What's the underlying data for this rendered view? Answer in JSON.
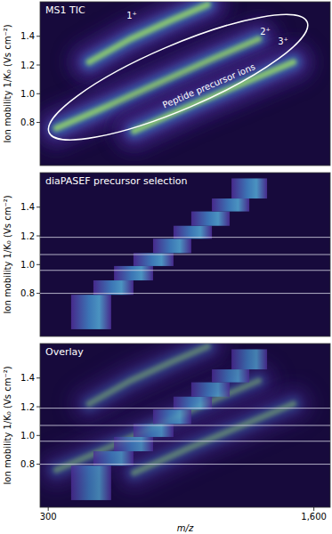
{
  "chart_data": [
    {
      "type": "heatmap",
      "title": "MS1 TIC",
      "ylabel": "Ion mobility 1/K₀ (Vs cm⁻²)",
      "xlim": [
        260,
        1680
      ],
      "ylim": [
        0.5,
        1.64
      ],
      "yticks": [
        0.8,
        {
          "value": 1,
          "label": "1.0"
        },
        1.2,
        1.4
      ],
      "tick_labels": "y",
      "bands": [
        {
          "label": "1⁺",
          "label_x": 709,
          "label_y": 1.52,
          "x": [
            500,
            700,
            900,
            1080
          ],
          "y": [
            1.22,
            1.38,
            1.51,
            1.62
          ]
        },
        {
          "label": "2⁺",
          "label_x": 1362,
          "label_y": 1.41,
          "x": [
            340,
            600,
            850,
            1100,
            1330
          ],
          "y": [
            0.76,
            0.92,
            1.08,
            1.24,
            1.38
          ]
        },
        {
          "label": "3⁺",
          "label_x": 1449,
          "label_y": 1.34,
          "x": [
            720,
            1000,
            1250,
            1500
          ],
          "y": [
            0.74,
            0.92,
            1.07,
            1.22
          ]
        }
      ],
      "region": {
        "label": "Peptide precursor ions",
        "x": [
          304,
          1567
        ],
        "y": [
          0.73,
          1.5
        ]
      }
    },
    {
      "type": "heatmap",
      "title": "diaPASEF precursor selection",
      "ylabel": "Ion mobility 1/K₀ (Vs cm⁻²)",
      "xlim": [
        260,
        1680
      ],
      "ylim": [
        0.5,
        1.64
      ],
      "yticks": [
        0.8,
        {
          "value": 1,
          "label": "1.0"
        },
        1.2,
        1.4
      ],
      "tick_labels": "y",
      "windows": [
        {
          "mz": [
            412,
            608
          ],
          "mobility": [
            0.55,
            0.79
          ]
        },
        {
          "mz": [
            521,
            717
          ],
          "mobility": [
            0.79,
            0.89
          ]
        },
        {
          "mz": [
            622,
            813
          ],
          "mobility": [
            0.89,
            0.99
          ]
        },
        {
          "mz": [
            717,
            913
          ],
          "mobility": [
            0.99,
            1.08
          ]
        },
        {
          "mz": [
            813,
            1000
          ],
          "mobility": [
            1.08,
            1.18
          ]
        },
        {
          "mz": [
            913,
            1101
          ],
          "mobility": [
            1.18,
            1.27
          ]
        },
        {
          "mz": [
            1000,
            1188
          ],
          "mobility": [
            1.27,
            1.37
          ]
        },
        {
          "mz": [
            1101,
            1284
          ],
          "mobility": [
            1.37,
            1.46
          ]
        },
        {
          "mz": [
            1197,
            1371
          ],
          "mobility": [
            1.46,
            1.6
          ]
        }
      ],
      "separators": [
        1.19,
        1.07,
        0.96,
        0.8
      ]
    },
    {
      "type": "heatmap",
      "title": "Overlay",
      "ylabel": "Ion mobility 1/K₀ (Vs cm⁻²)",
      "xlabel": "m/z",
      "xlim": [
        260,
        1680
      ],
      "ylim": [
        0.5,
        1.64
      ],
      "yticks": [
        0.8,
        {
          "value": 1,
          "label": "1.0"
        },
        1.2,
        1.4
      ],
      "xticks": [
        300,
        {
          "value": 1600,
          "label": "1,600"
        }
      ],
      "bands": [
        {
          "x": [
            500,
            700,
            900,
            1080
          ],
          "y": [
            1.22,
            1.38,
            1.51,
            1.62
          ]
        },
        {
          "x": [
            340,
            600,
            850,
            1100,
            1330
          ],
          "y": [
            0.76,
            0.92,
            1.08,
            1.24,
            1.38
          ]
        },
        {
          "x": [
            720,
            1000,
            1250,
            1500
          ],
          "y": [
            0.74,
            0.92,
            1.07,
            1.22
          ]
        }
      ],
      "windows": [
        {
          "mz": [
            412,
            608
          ],
          "mobility": [
            0.55,
            0.79
          ]
        },
        {
          "mz": [
            521,
            717
          ],
          "mobility": [
            0.79,
            0.89
          ]
        },
        {
          "mz": [
            622,
            813
          ],
          "mobility": [
            0.89,
            0.99
          ]
        },
        {
          "mz": [
            717,
            913
          ],
          "mobility": [
            0.99,
            1.08
          ]
        },
        {
          "mz": [
            813,
            1000
          ],
          "mobility": [
            1.08,
            1.18
          ]
        },
        {
          "mz": [
            913,
            1101
          ],
          "mobility": [
            1.18,
            1.27
          ]
        },
        {
          "mz": [
            1000,
            1188
          ],
          "mobility": [
            1.27,
            1.37
          ]
        },
        {
          "mz": [
            1101,
            1284
          ],
          "mobility": [
            1.37,
            1.46
          ]
        },
        {
          "mz": [
            1197,
            1371
          ],
          "mobility": [
            1.46,
            1.6
          ]
        }
      ],
      "separators": [
        1.19,
        1.07,
        0.96,
        0.8
      ]
    }
  ]
}
